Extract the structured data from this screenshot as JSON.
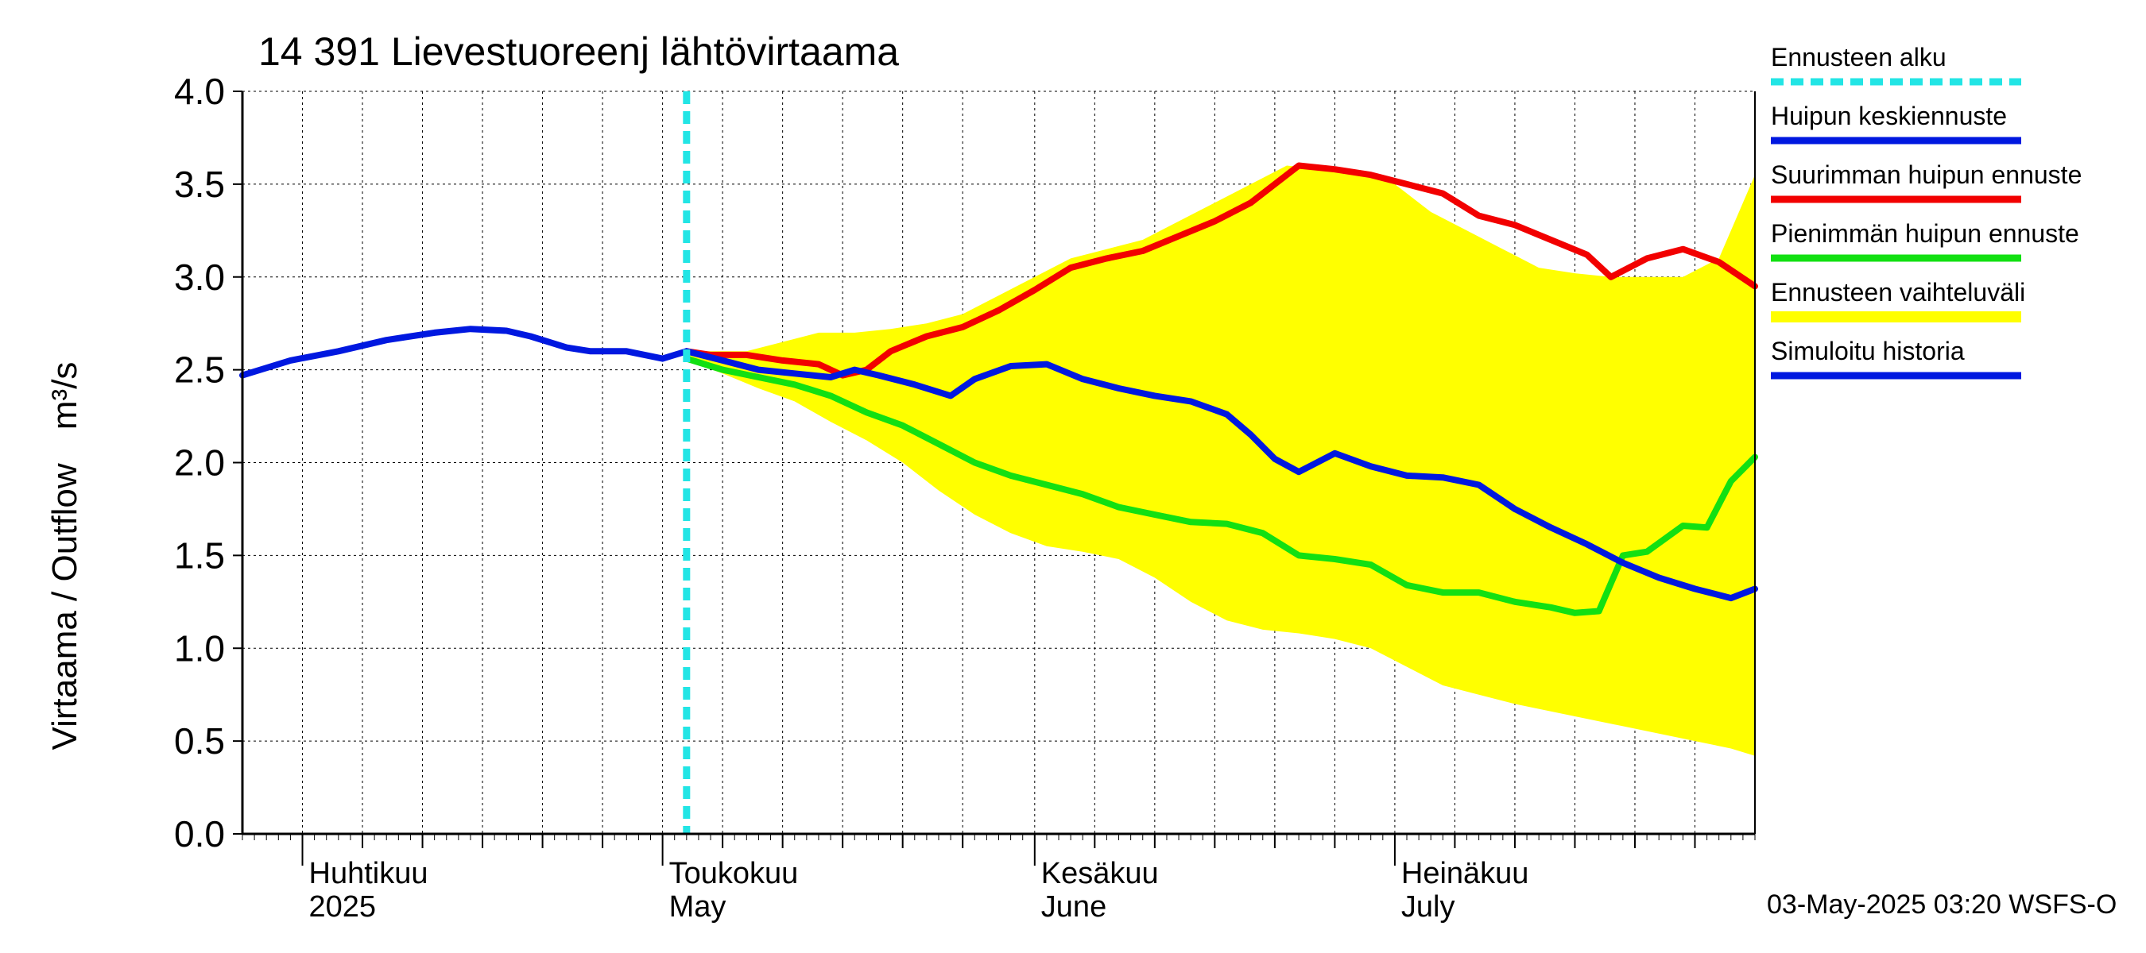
{
  "chart_data": {
    "type": "line",
    "title": "14 391 Lievestuoreenj lähtövirtaama",
    "ylabel_fi": "Virtaama / Outflow",
    "ylabel_unit": "m³/s",
    "ylim": [
      0,
      4.0
    ],
    "yticks": [
      "0.0",
      "0.5",
      "1.0",
      "1.5",
      "2.0",
      "2.5",
      "3.0",
      "3.5",
      "4.0"
    ],
    "xlim": [
      "2025-03-27",
      "2025-07-31"
    ],
    "grid": true,
    "x_month_labels": [
      {
        "date": "2025-04-01",
        "fi": "Huhtikuu",
        "en": "2025"
      },
      {
        "date": "2025-05-01",
        "fi": "Toukokuu",
        "en": "May"
      },
      {
        "date": "2025-06-01",
        "fi": "Kesäkuu",
        "en": "June"
      },
      {
        "date": "2025-07-01",
        "fi": "Heinäkuu",
        "en": "July"
      }
    ],
    "forecast_start": "2025-05-03",
    "legend": [
      {
        "label": "Ennusteen alku",
        "color": "#22e5e5",
        "style": "dashed"
      },
      {
        "label": "Huipun keskiennuste",
        "color": "#0018e0",
        "style": "solid"
      },
      {
        "label": "Suurimman huipun ennuste",
        "color": "#f20000",
        "style": "solid"
      },
      {
        "label": "Pienimmän huipun ennuste",
        "color": "#12e012",
        "style": "solid"
      },
      {
        "label": "Ennusteen vaihteluväli",
        "color": "#ffff00",
        "style": "band"
      },
      {
        "label": "Simuloitu historia",
        "color": "#0018e0",
        "style": "solid"
      }
    ],
    "series": {
      "band_upper": {
        "x": [
          "2025-05-03",
          "2025-05-05",
          "2025-05-08",
          "2025-05-11",
          "2025-05-14",
          "2025-05-17",
          "2025-05-20",
          "2025-05-23",
          "2025-05-26",
          "2025-05-29",
          "2025-06-01",
          "2025-06-04",
          "2025-06-07",
          "2025-06-10",
          "2025-06-13",
          "2025-06-16",
          "2025-06-19",
          "2025-06-22",
          "2025-06-25",
          "2025-06-28",
          "2025-07-01",
          "2025-07-04",
          "2025-07-07",
          "2025-07-10",
          "2025-07-13",
          "2025-07-16",
          "2025-07-19",
          "2025-07-22",
          "2025-07-25",
          "2025-07-28",
          "2025-07-31"
        ],
        "y": [
          2.6,
          2.6,
          2.6,
          2.65,
          2.7,
          2.7,
          2.72,
          2.75,
          2.8,
          2.9,
          3.0,
          3.1,
          3.15,
          3.2,
          3.3,
          3.4,
          3.5,
          3.6,
          3.58,
          3.55,
          3.5,
          3.35,
          3.25,
          3.15,
          3.05,
          3.02,
          3.0,
          3.0,
          3.0,
          3.1,
          3.55
        ]
      },
      "band_lower": {
        "x": [
          "2025-05-03",
          "2025-05-06",
          "2025-05-09",
          "2025-05-12",
          "2025-05-15",
          "2025-05-18",
          "2025-05-21",
          "2025-05-24",
          "2025-05-27",
          "2025-05-30",
          "2025-06-02",
          "2025-06-05",
          "2025-06-08",
          "2025-06-11",
          "2025-06-14",
          "2025-06-17",
          "2025-06-20",
          "2025-06-23",
          "2025-06-26",
          "2025-06-29",
          "2025-07-02",
          "2025-07-05",
          "2025-07-08",
          "2025-07-11",
          "2025-07-14",
          "2025-07-17",
          "2025-07-20",
          "2025-07-23",
          "2025-07-26",
          "2025-07-29",
          "2025-07-31"
        ],
        "y": [
          2.55,
          2.48,
          2.4,
          2.33,
          2.22,
          2.12,
          2.0,
          1.85,
          1.72,
          1.62,
          1.55,
          1.52,
          1.48,
          1.38,
          1.25,
          1.15,
          1.1,
          1.08,
          1.05,
          1.0,
          0.9,
          0.8,
          0.75,
          0.7,
          0.66,
          0.62,
          0.58,
          0.54,
          0.5,
          0.46,
          0.42
        ]
      },
      "history": {
        "x": [
          "2025-03-27",
          "2025-03-31",
          "2025-04-04",
          "2025-04-08",
          "2025-04-12",
          "2025-04-15",
          "2025-04-18",
          "2025-04-20",
          "2025-04-23",
          "2025-04-25",
          "2025-04-28",
          "2025-05-01",
          "2025-05-03"
        ],
        "y": [
          2.47,
          2.55,
          2.6,
          2.66,
          2.7,
          2.72,
          2.71,
          2.68,
          2.62,
          2.6,
          2.6,
          2.56,
          2.6
        ]
      },
      "mean_forecast": {
        "x": [
          "2025-05-03",
          "2025-05-06",
          "2025-05-09",
          "2025-05-12",
          "2025-05-15",
          "2025-05-17",
          "2025-05-19",
          "2025-05-22",
          "2025-05-25",
          "2025-05-27",
          "2025-05-30",
          "2025-06-02",
          "2025-06-05",
          "2025-06-08",
          "2025-06-11",
          "2025-06-14",
          "2025-06-17",
          "2025-06-19",
          "2025-06-21",
          "2025-06-23",
          "2025-06-26",
          "2025-06-29",
          "2025-07-02",
          "2025-07-05",
          "2025-07-08",
          "2025-07-11",
          "2025-07-14",
          "2025-07-17",
          "2025-07-20",
          "2025-07-23",
          "2025-07-26",
          "2025-07-29",
          "2025-07-31"
        ],
        "y": [
          2.6,
          2.55,
          2.5,
          2.48,
          2.46,
          2.5,
          2.47,
          2.42,
          2.36,
          2.45,
          2.52,
          2.53,
          2.45,
          2.4,
          2.36,
          2.33,
          2.26,
          2.15,
          2.02,
          1.95,
          2.05,
          1.98,
          1.93,
          1.92,
          1.88,
          1.75,
          1.65,
          1.56,
          1.46,
          1.38,
          1.32,
          1.27,
          1.32
        ]
      },
      "max_forecast": {
        "x": [
          "2025-05-03",
          "2025-05-05",
          "2025-05-08",
          "2025-05-11",
          "2025-05-14",
          "2025-05-16",
          "2025-05-18",
          "2025-05-20",
          "2025-05-23",
          "2025-05-26",
          "2025-05-29",
          "2025-06-01",
          "2025-06-04",
          "2025-06-07",
          "2025-06-10",
          "2025-06-13",
          "2025-06-16",
          "2025-06-19",
          "2025-06-21",
          "2025-06-23",
          "2025-06-26",
          "2025-06-29",
          "2025-07-02",
          "2025-07-05",
          "2025-07-08",
          "2025-07-11",
          "2025-07-14",
          "2025-07-17",
          "2025-07-19",
          "2025-07-22",
          "2025-07-25",
          "2025-07-28",
          "2025-07-31"
        ],
        "y": [
          2.6,
          2.58,
          2.58,
          2.55,
          2.53,
          2.47,
          2.5,
          2.6,
          2.68,
          2.73,
          2.82,
          2.93,
          3.05,
          3.1,
          3.14,
          3.22,
          3.3,
          3.4,
          3.5,
          3.6,
          3.58,
          3.55,
          3.5,
          3.45,
          3.33,
          3.28,
          3.2,
          3.12,
          3.0,
          3.1,
          3.15,
          3.08,
          2.95
        ]
      },
      "min_forecast": {
        "x": [
          "2025-05-03",
          "2025-05-06",
          "2025-05-09",
          "2025-05-12",
          "2025-05-15",
          "2025-05-18",
          "2025-05-21",
          "2025-05-24",
          "2025-05-27",
          "2025-05-30",
          "2025-06-02",
          "2025-06-05",
          "2025-06-08",
          "2025-06-11",
          "2025-06-14",
          "2025-06-17",
          "2025-06-20",
          "2025-06-23",
          "2025-06-26",
          "2025-06-29",
          "2025-07-02",
          "2025-07-05",
          "2025-07-08",
          "2025-07-11",
          "2025-07-14",
          "2025-07-16",
          "2025-07-18",
          "2025-07-20",
          "2025-07-22",
          "2025-07-25",
          "2025-07-27",
          "2025-07-29",
          "2025-07-31"
        ],
        "y": [
          2.56,
          2.5,
          2.46,
          2.42,
          2.36,
          2.27,
          2.2,
          2.1,
          2.0,
          1.93,
          1.88,
          1.83,
          1.76,
          1.72,
          1.68,
          1.67,
          1.62,
          1.5,
          1.48,
          1.45,
          1.34,
          1.3,
          1.3,
          1.25,
          1.22,
          1.19,
          1.2,
          1.5,
          1.52,
          1.66,
          1.65,
          1.9,
          2.03
        ]
      }
    },
    "footer": "03-May-2025 03:20 WSFS-O"
  }
}
